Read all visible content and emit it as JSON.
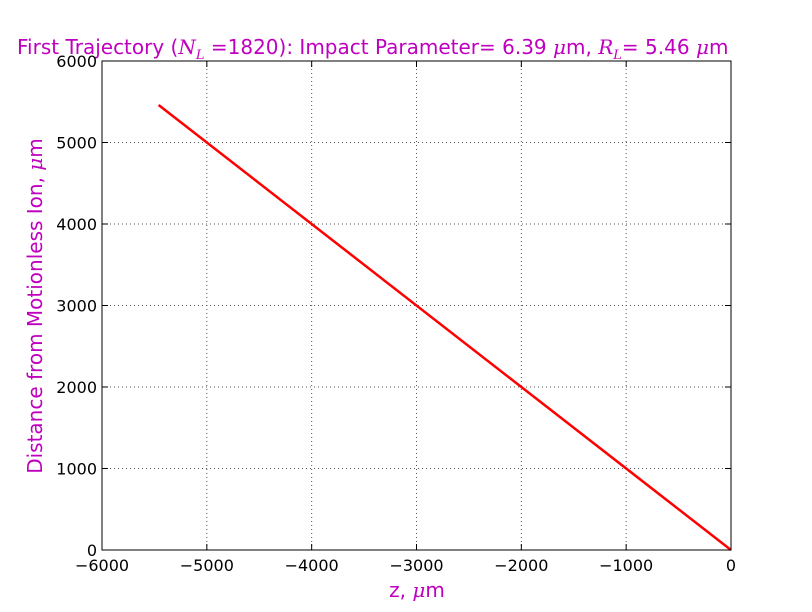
{
  "chart_data": {
    "type": "line",
    "title": {
      "pre": "First Trajectory (",
      "nsym": "N",
      "nsub": "L",
      "eq": " =",
      "nval": "1820",
      "mid": "): Impact Parameter= 6.39 ",
      "mu1": "μ",
      "m1": "m, ",
      "rsym": "R",
      "rsub": "L",
      "rval": "= 5.46 ",
      "mu2": "μ",
      "m2": "m"
    },
    "xlabel": {
      "text": "z, ",
      "mu": "μ",
      "unit": "m"
    },
    "ylabel": {
      "text": "Distance from Motionless Ion, ",
      "mu": "μ",
      "unit": "m"
    },
    "xlim": [
      -6000,
      0
    ],
    "ylim": [
      0,
      6000
    ],
    "xticks": [
      "−6000",
      "−5000",
      "−4000",
      "−3000",
      "−2000",
      "−1000",
      "0"
    ],
    "yticks": [
      "0",
      "1000",
      "2000",
      "3000",
      "4000",
      "5000",
      "6000"
    ],
    "grid": true,
    "series": [
      {
        "color": "#ff0000",
        "x": [
          -5460,
          0
        ],
        "y": [
          5460,
          0
        ]
      }
    ],
    "colors": {
      "title": "#bf00bf",
      "labels": "#bf00bf",
      "line": "#ff0000",
      "grid": "#555555"
    }
  }
}
